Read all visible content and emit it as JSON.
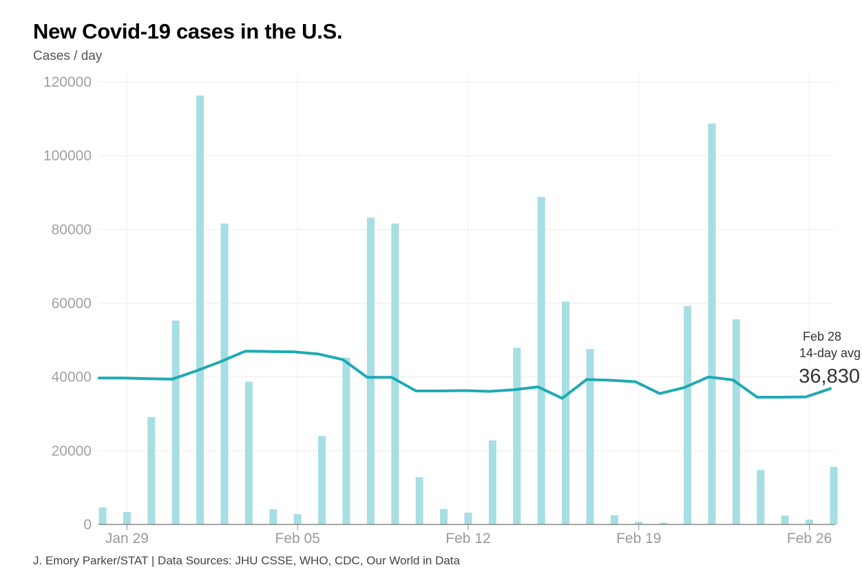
{
  "title": "New Covid-19 cases in the U.S.",
  "subtitle": "Cases / day",
  "footer": "J. Emory Parker/STAT | Data Sources: JHU CSSE, WHO, CDC, Our World in Data",
  "colors": {
    "bar": "#a6dee3",
    "line": "#1eaab4",
    "grid": "#ececec",
    "axis": "#888888"
  },
  "chart_data": {
    "type": "bar",
    "title": "New Covid-19 cases in the U.S.",
    "ylabel": "Cases / day",
    "xlabel": "",
    "ylim": [
      0,
      120000
    ],
    "grid": true,
    "yticks": [
      0,
      20000,
      40000,
      60000,
      80000,
      100000,
      120000
    ],
    "ytick_labels": [
      "0",
      "20000",
      "40000",
      "60000",
      "80000",
      "100000",
      "120000"
    ],
    "xtick_labels": [
      {
        "label": "Jan 29",
        "index": 1
      },
      {
        "label": "Feb 05",
        "index": 8
      },
      {
        "label": "Feb 12",
        "index": 15
      },
      {
        "label": "Feb 19",
        "index": 22
      },
      {
        "label": "Feb 26",
        "index": 29
      }
    ],
    "categories": [
      "Jan 28",
      "Jan 29",
      "Jan 30",
      "Jan 31",
      "Feb 01",
      "Feb 02",
      "Feb 03",
      "Feb 04",
      "Feb 05",
      "Feb 06",
      "Feb 07",
      "Feb 08",
      "Feb 09",
      "Feb 10",
      "Feb 11",
      "Feb 12",
      "Feb 13",
      "Feb 14",
      "Feb 15",
      "Feb 16",
      "Feb 17",
      "Feb 18",
      "Feb 19",
      "Feb 20",
      "Feb 21",
      "Feb 22",
      "Feb 23",
      "Feb 24",
      "Feb 25",
      "Feb 26",
      "Feb 27"
    ],
    "series": [
      {
        "name": "Daily new cases",
        "type": "bar",
        "values": [
          4600,
          3400,
          29100,
          55300,
          116300,
          81600,
          38700,
          4100,
          2800,
          24000,
          45200,
          83200,
          81600,
          12800,
          4200,
          3200,
          22800,
          47900,
          88800,
          60400,
          47600,
          2500,
          700,
          500,
          59200,
          108700,
          55600,
          14800,
          2400,
          1300,
          15600
        ]
      },
      {
        "name": "14-day average",
        "type": "line",
        "values": [
          39700,
          39700,
          39500,
          39400,
          41700,
          44200,
          47000,
          46900,
          46800,
          46200,
          44700,
          39900,
          39900,
          36200,
          36200,
          36300,
          36100,
          36500,
          37300,
          34200,
          39300,
          39100,
          38700,
          35500,
          37100,
          40000,
          39200,
          34500,
          34500,
          34600,
          36830
        ]
      }
    ],
    "annotations": [
      {
        "line1": "Feb 28",
        "line2": "14-day avg",
        "value": "36,830"
      }
    ]
  }
}
